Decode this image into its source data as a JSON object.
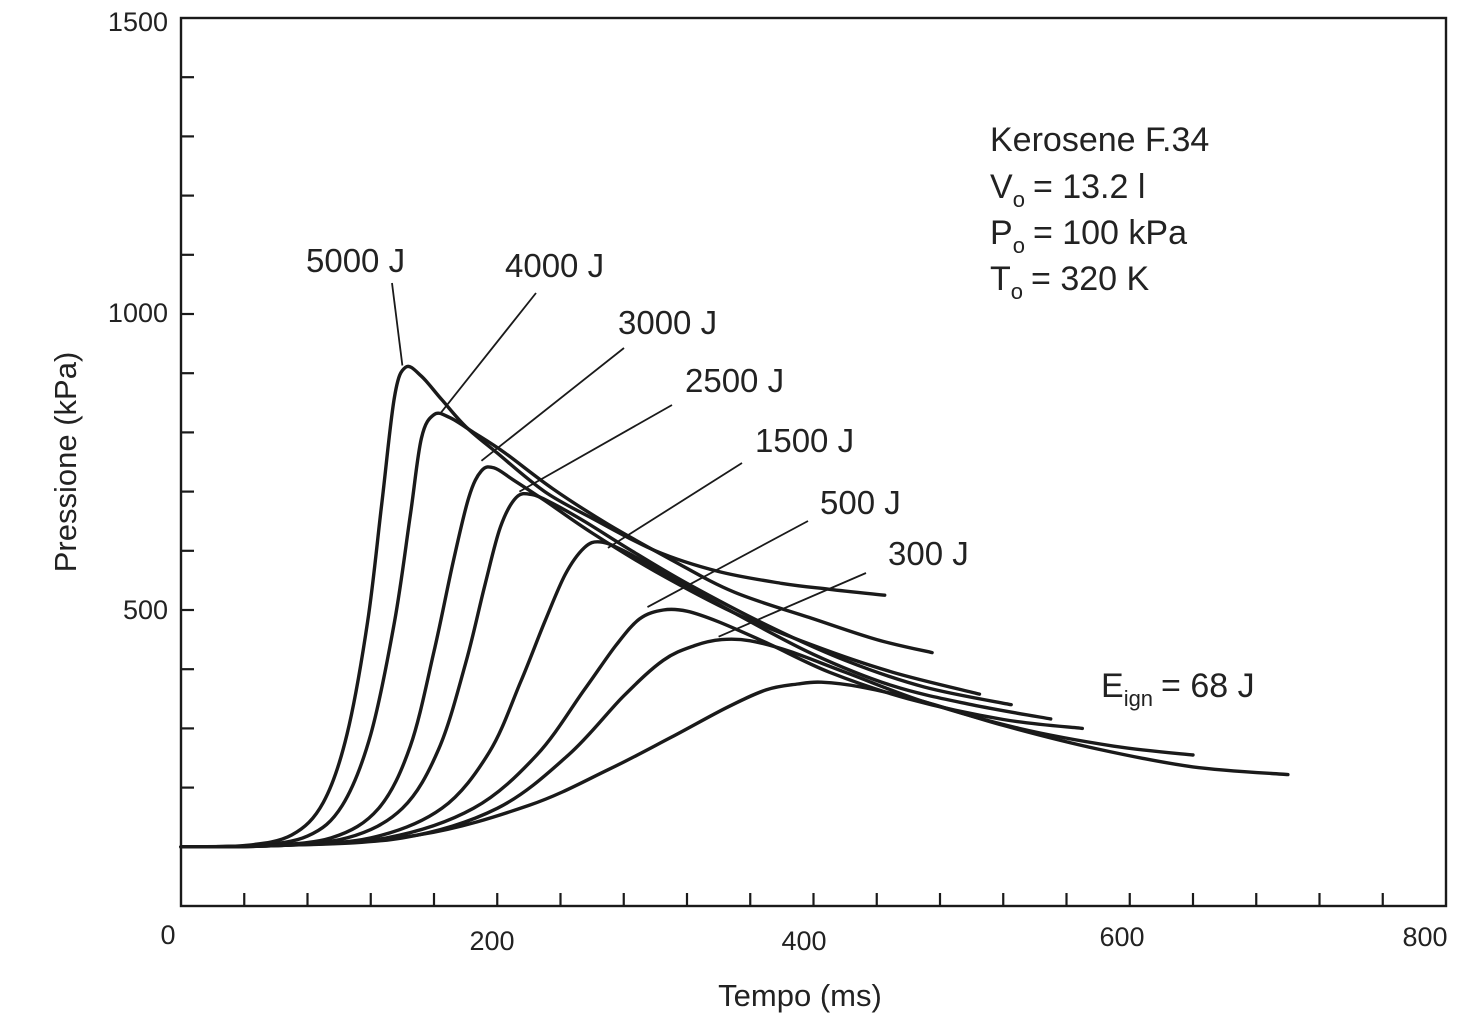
{
  "chart_data": {
    "type": "line",
    "title": "",
    "xlabel": "Tempo (ms)",
    "ylabel": "Pressione (kPa)",
    "xlim": [
      0,
      800
    ],
    "ylim": [
      0,
      1500
    ],
    "x_ticks": [
      "0",
      "200",
      "400",
      "600",
      "800"
    ],
    "y_ticks": [
      "1500",
      "1000",
      "500"
    ],
    "grid": false,
    "legend": "none",
    "annotations": {
      "fuel": "Kerosene F.34",
      "v_sym": "V",
      "v_sub": "o",
      "v_val": "= 13.2 l",
      "p_sym": "P",
      "p_sub": "o",
      "p_val": "= 100 kPa",
      "t_sym": "T",
      "t_sub": "o",
      "t_val": "= 320 K",
      "e_sym": "E",
      "e_sub": "ign",
      "e_val": "= 68 J"
    },
    "series": [
      {
        "name": "5000 J",
        "x": [
          0,
          40,
          70,
          90,
          105,
          118,
          127,
          135,
          142,
          152,
          165,
          180,
          200,
          230,
          260,
          300,
          340,
          380,
          410,
          445
        ],
        "y": [
          100,
          102,
          120,
          175,
          290,
          480,
          680,
          860,
          910,
          895,
          855,
          810,
          765,
          700,
          655,
          600,
          565,
          545,
          535,
          525
        ]
      },
      {
        "name": "4000 J",
        "x": [
          0,
          45,
          80,
          102,
          120,
          135,
          145,
          152,
          160,
          170,
          185,
          205,
          235,
          270,
          310,
          350,
          400,
          440,
          475
        ],
        "y": [
          100,
          102,
          118,
          170,
          290,
          480,
          660,
          790,
          830,
          825,
          800,
          765,
          705,
          645,
          585,
          530,
          485,
          450,
          428
        ]
      },
      {
        "name": "3000 J",
        "x": [
          0,
          50,
          95,
          125,
          145,
          160,
          172,
          182,
          190,
          198,
          210,
          230,
          260,
          300,
          350,
          400,
          450,
          505
        ],
        "y": [
          100,
          102,
          115,
          165,
          270,
          430,
          580,
          690,
          735,
          740,
          720,
          685,
          630,
          565,
          495,
          440,
          395,
          358
        ]
      },
      {
        "name": "2500 J",
        "x": [
          0,
          55,
          105,
          140,
          163,
          180,
          192,
          202,
          212,
          222,
          235,
          255,
          285,
          320,
          370,
          420,
          470,
          525
        ],
        "y": [
          100,
          102,
          115,
          165,
          265,
          410,
          540,
          640,
          690,
          695,
          680,
          650,
          600,
          545,
          475,
          415,
          370,
          340
        ]
      },
      {
        "name": "1500 J",
        "x": [
          0,
          60,
          120,
          165,
          195,
          215,
          230,
          243,
          255,
          265,
          280,
          310,
          350,
          400,
          450,
          500,
          550
        ],
        "y": [
          100,
          102,
          115,
          165,
          260,
          380,
          480,
          560,
          605,
          615,
          600,
          555,
          495,
          425,
          372,
          340,
          316
        ]
      },
      {
        "name": "500 J",
        "x": [
          0,
          60,
          130,
          185,
          225,
          255,
          275,
          290,
          305,
          320,
          340,
          370,
          410,
          460,
          520,
          570
        ],
        "y": [
          100,
          102,
          115,
          165,
          255,
          365,
          440,
          485,
          500,
          498,
          480,
          445,
          395,
          350,
          315,
          300
        ]
      },
      {
        "name": "300 J",
        "x": [
          0,
          60,
          140,
          200,
          245,
          280,
          305,
          325,
          342,
          360,
          385,
          420,
          470,
          530,
          590,
          640
        ],
        "y": [
          100,
          102,
          115,
          165,
          255,
          355,
          415,
          440,
          450,
          448,
          430,
          395,
          345,
          300,
          270,
          255
        ]
      },
      {
        "name": "E_ign = 68 J",
        "x": [
          0,
          60,
          150,
          220,
          270,
          310,
          345,
          370,
          390,
          405,
          430,
          470,
          520,
          580,
          640,
          700
        ],
        "y": [
          100,
          102,
          120,
          170,
          230,
          285,
          335,
          365,
          375,
          378,
          370,
          345,
          305,
          265,
          235,
          222
        ]
      }
    ],
    "curve_labels": [
      {
        "text": "5000 J",
        "x": 140,
        "y": 913
      },
      {
        "text": "4000 J",
        "x": 164,
        "y": 832
      },
      {
        "text": "3000 J",
        "x": 190,
        "y": 752
      },
      {
        "text": "2500 J",
        "x": 214,
        "y": 700
      },
      {
        "text": "1500 J",
        "x": 270,
        "y": 605
      },
      {
        "text": "500 J",
        "x": 295,
        "y": 505
      },
      {
        "text": "300 J",
        "x": 340,
        "y": 455
      }
    ]
  }
}
